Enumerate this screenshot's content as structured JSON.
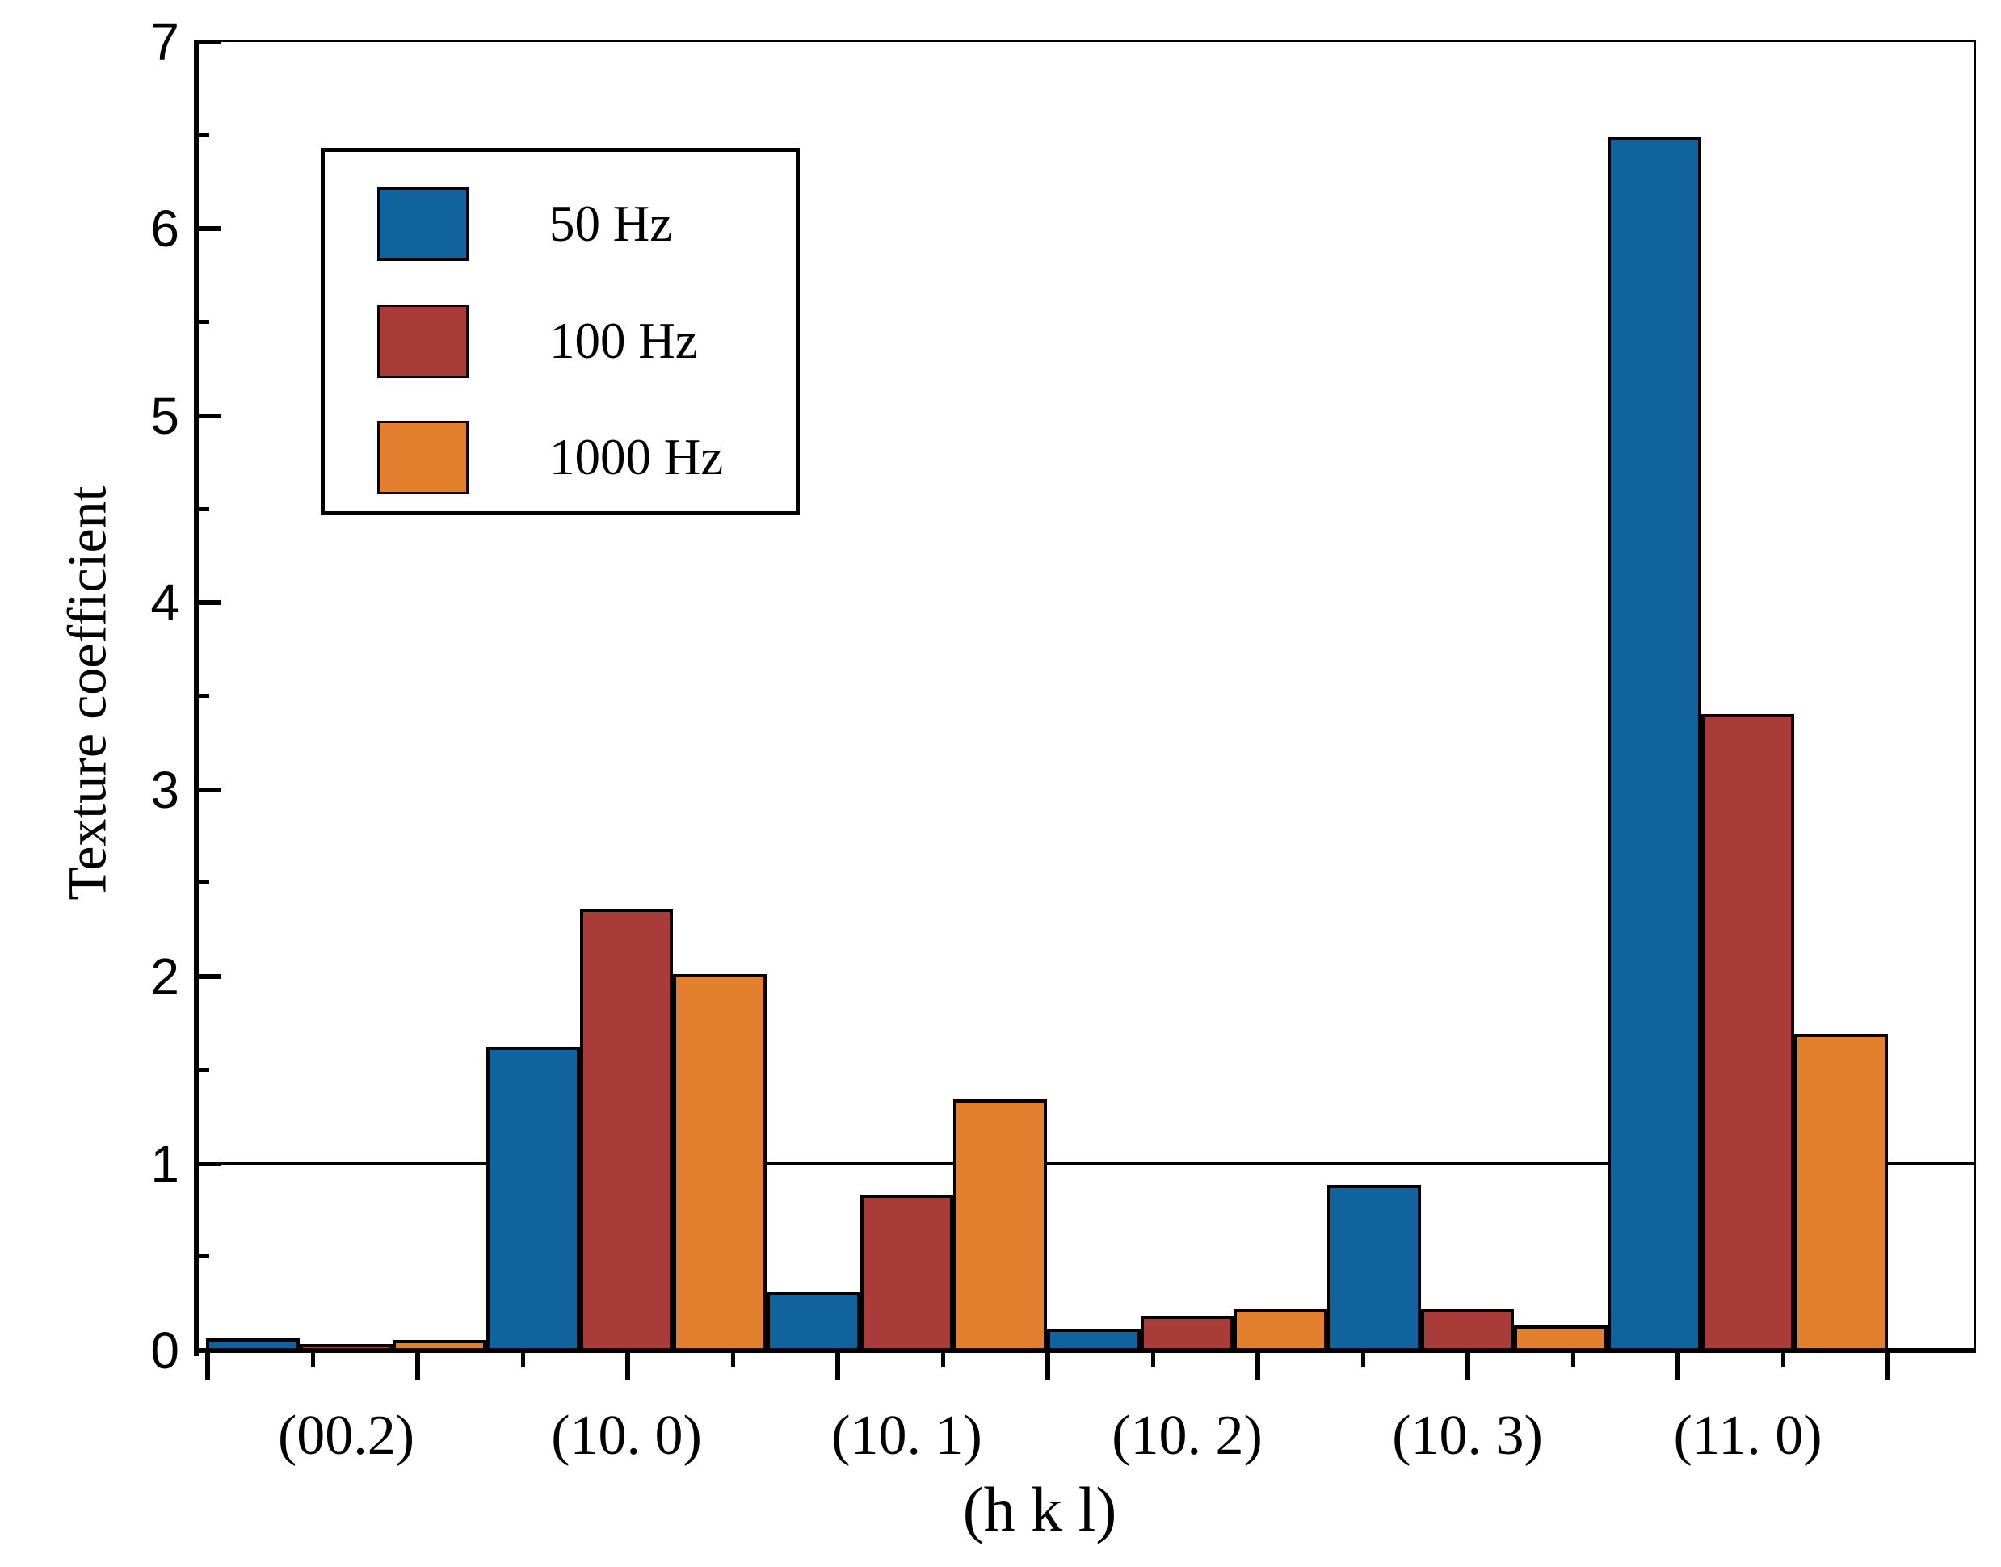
{
  "chart_data": {
    "type": "bar",
    "title": "",
    "xlabel": "(h k l)",
    "ylabel": "Texture coefficient",
    "ylim": [
      0,
      7
    ],
    "y_major_step": 1,
    "y_minor_step": 0.5,
    "y_tick_labels": [
      "0",
      "1",
      "2",
      "3",
      "4",
      "5",
      "6",
      "7"
    ],
    "categories": [
      "(00.2)",
      "(10. 0)",
      "(10. 1)",
      "(10. 2)",
      "(10. 3)",
      "(11. 0)"
    ],
    "series": [
      {
        "name": "50 Hz",
        "color": "#10639C",
        "values": [
          0.07,
          1.63,
          0.32,
          0.12,
          0.89,
          6.5
        ]
      },
      {
        "name": "100 Hz",
        "color": "#A93B38",
        "values": [
          0.04,
          2.37,
          0.84,
          0.19,
          0.23,
          3.41
        ]
      },
      {
        "name": "1000 Hz",
        "color": "#E2802E",
        "values": [
          0.06,
          2.02,
          1.35,
          0.23,
          0.14,
          1.7
        ]
      }
    ],
    "reference_line_y": 1.0,
    "legend_position": "upper-left",
    "grid": false,
    "bar_border_color": "#000000",
    "axis_color": "#000000",
    "background_color": "#ffffff"
  }
}
